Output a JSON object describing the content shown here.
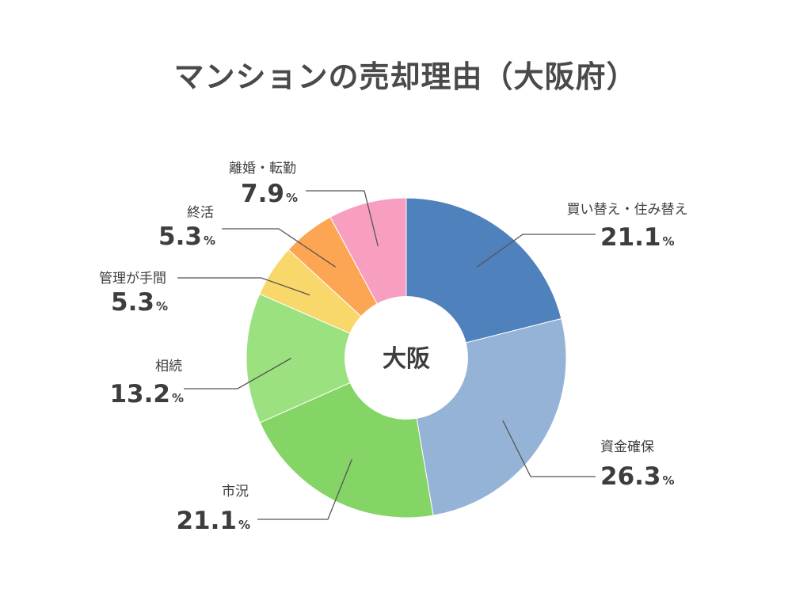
{
  "title": "マンションの売却理由（大阪府）",
  "center_label": "大阪",
  "unit": "%",
  "chart_data": {
    "type": "pie",
    "title": "マンションの売却理由（大阪府）",
    "donut": true,
    "center_label": "大阪",
    "unit": "%",
    "slices": [
      {
        "label": "買い替え・住み替え",
        "value": 21.1,
        "color": "#4f81bd"
      },
      {
        "label": "資金確保",
        "value": 26.3,
        "color": "#95b3d7"
      },
      {
        "label": "市況",
        "value": 21.1,
        "color": "#84d466"
      },
      {
        "label": "相続",
        "value": 13.2,
        "color": "#9be180"
      },
      {
        "label": "管理が手間",
        "value": 5.3,
        "color": "#f8d86b"
      },
      {
        "label": "終活",
        "value": 5.3,
        "color": "#fca553"
      },
      {
        "label": "離婚・転勤",
        "value": 7.9,
        "color": "#f79ec1"
      }
    ]
  }
}
